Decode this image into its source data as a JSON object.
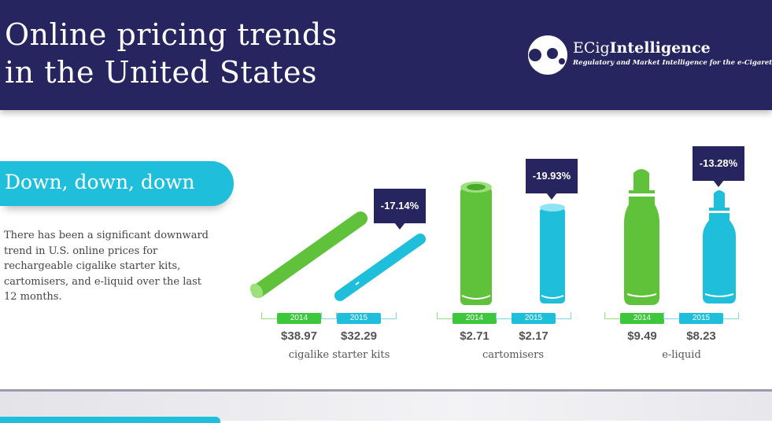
{
  "header": {
    "title_line1": "Online pricing trends",
    "title_line2": "in the United States",
    "logo": {
      "name_light": "ECig",
      "name_bold": "Intelligence",
      "tagline": "Regulatory and Market Intelligence for the e-Cigarette Sector"
    }
  },
  "section": {
    "heading": "Down, down, down",
    "description": "There has been a significant downward trend in U.S. online prices for rechargeable cigalike starter kits, cartomisers, and e-liquid over the last 12 months."
  },
  "colors": {
    "navy": "#262560",
    "green": "#3cc73c",
    "cyan": "#1fbfdc"
  },
  "products": [
    {
      "category": "cigalike starter kits",
      "change": "-17.14%",
      "year1": "2014",
      "price1": "$38.97",
      "year2": "2015",
      "price2": "$32.29",
      "icon": "cigalike-icon"
    },
    {
      "category": "cartomisers",
      "change": "-19.93%",
      "year1": "2014",
      "price1": "$2.71",
      "year2": "2015",
      "price2": "$2.17",
      "icon": "cartomiser-icon"
    },
    {
      "category": "e-liquid",
      "change": "-13.28%",
      "year1": "2014",
      "price1": "$9.49",
      "year2": "2015",
      "price2": "$8.23",
      "icon": "bottle-icon"
    }
  ]
}
